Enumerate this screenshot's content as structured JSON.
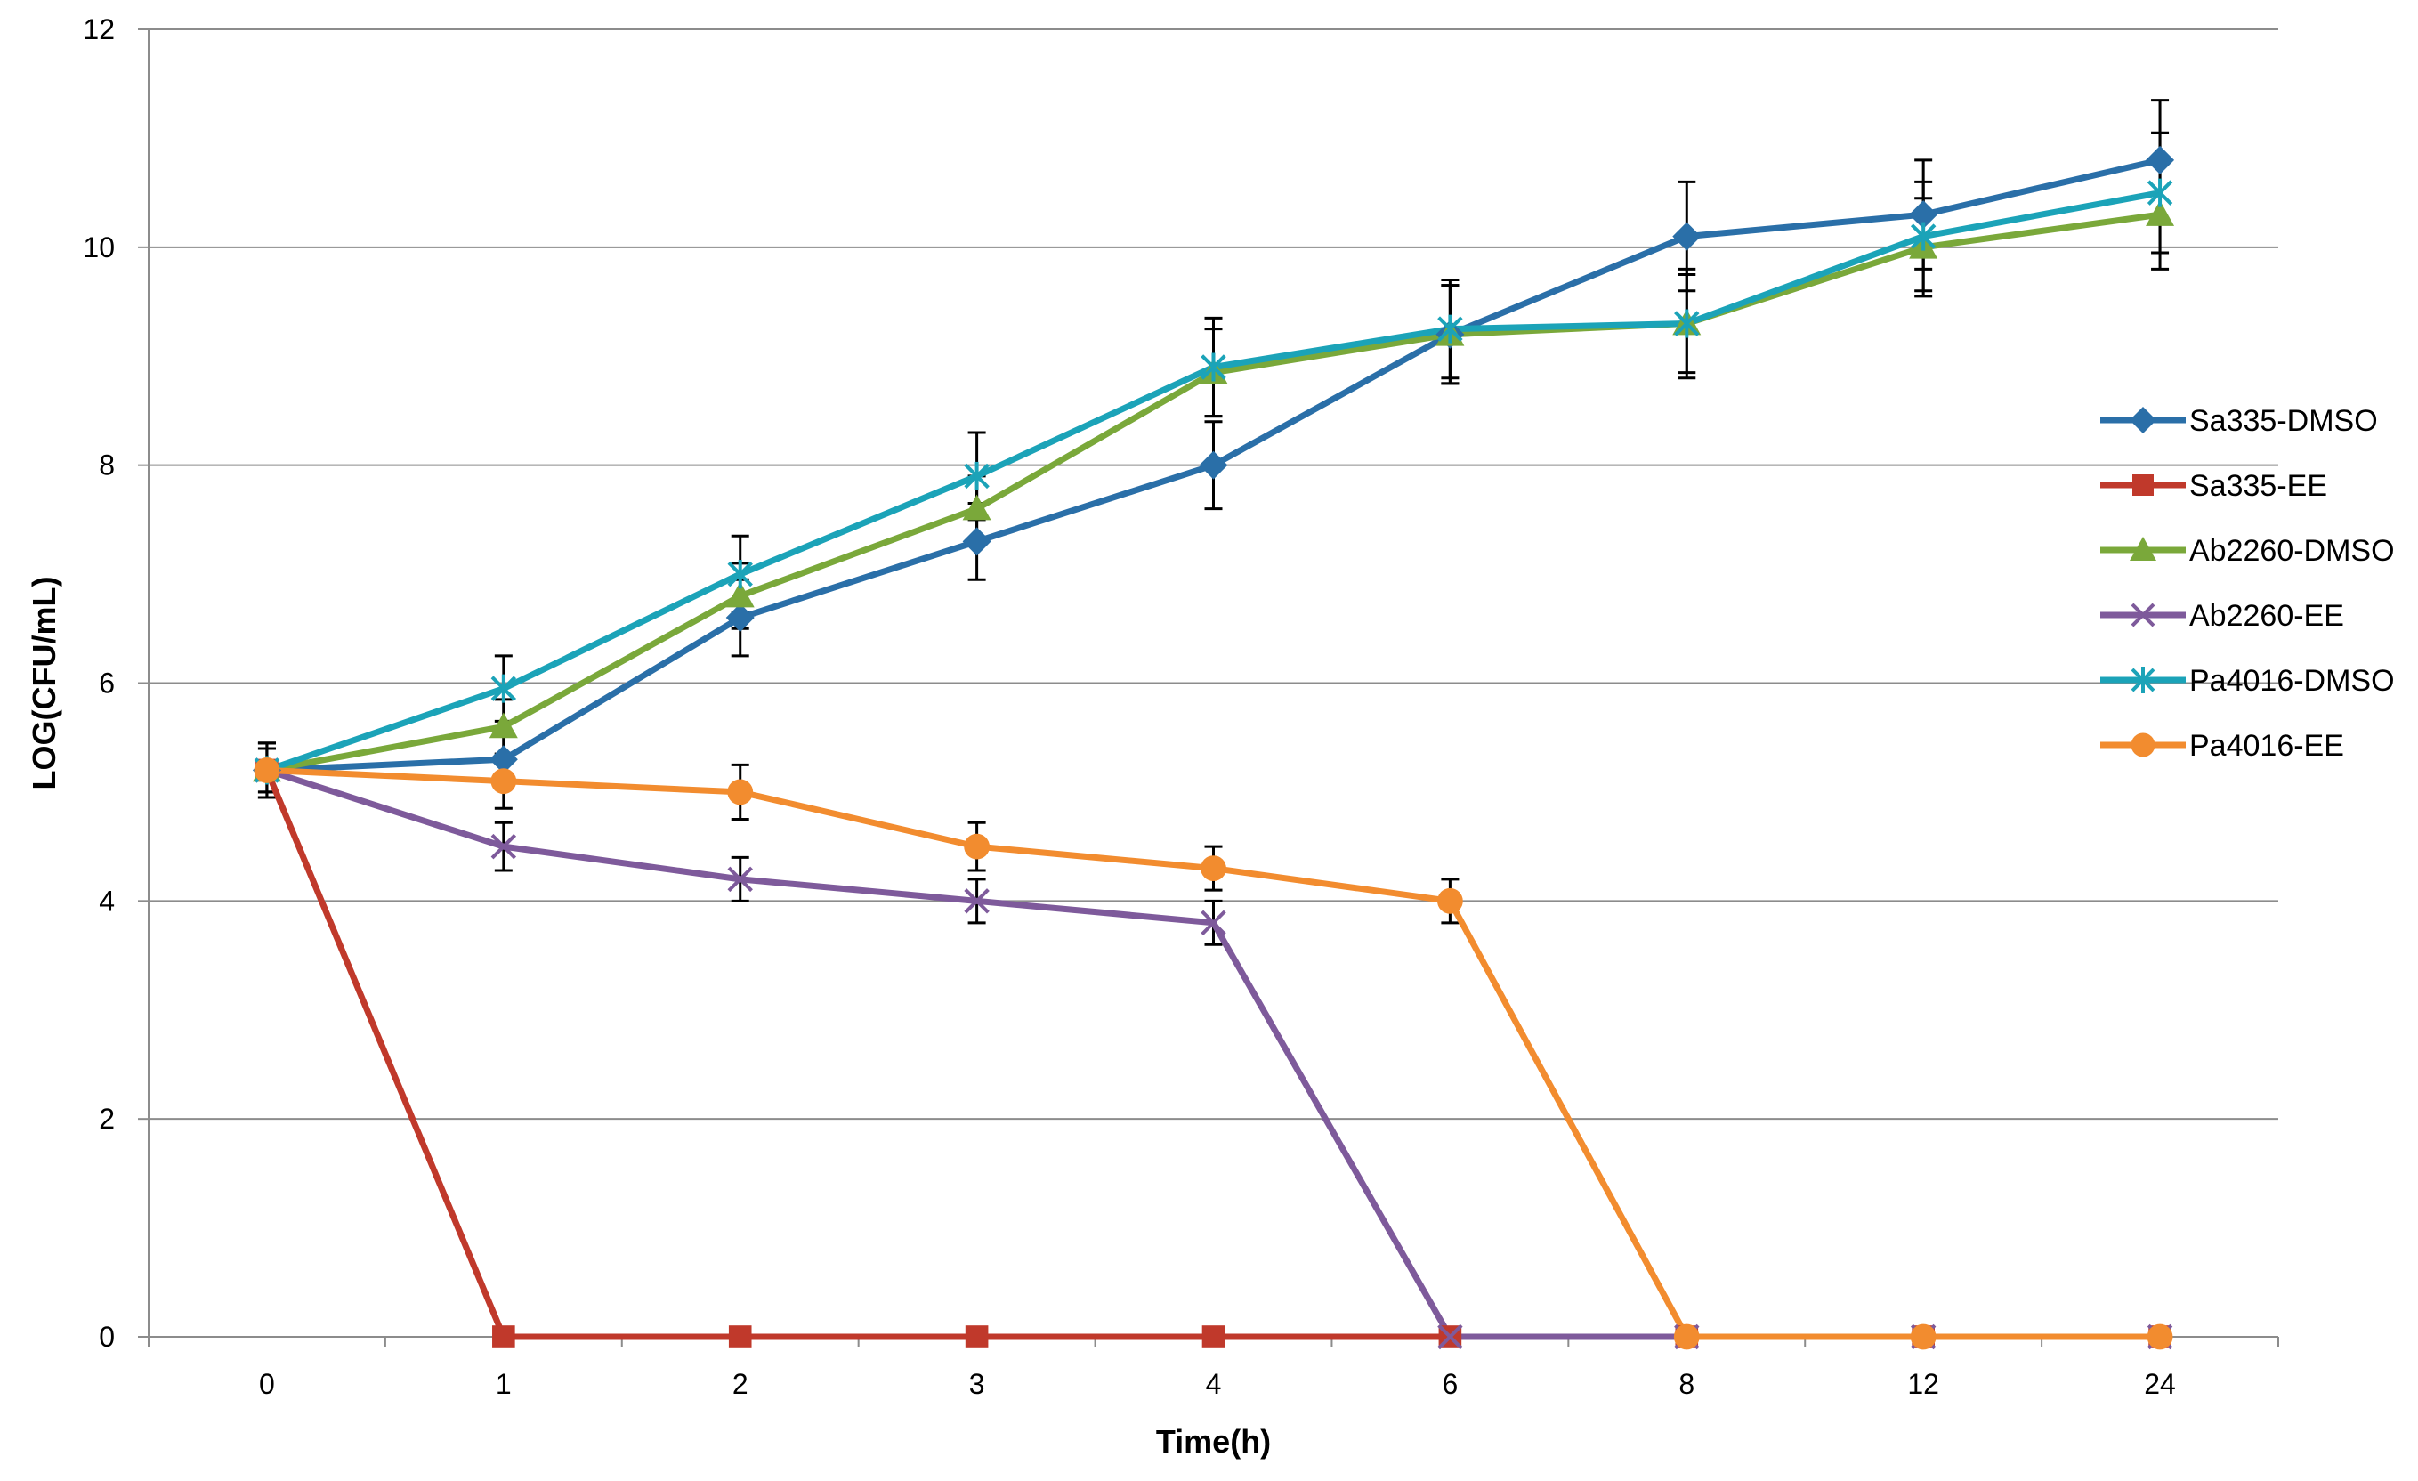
{
  "chart_data": {
    "type": "line",
    "title": "",
    "xlabel": "Time(h)",
    "ylabel": "LOG(CFU/mL)",
    "categories": [
      "0",
      "1",
      "2",
      "3",
      "4",
      "6",
      "8",
      "12",
      "24"
    ],
    "ylim": [
      0,
      12
    ],
    "y_ticks": [
      "0",
      "2",
      "4",
      "6",
      "8",
      "10",
      "12"
    ],
    "grid": "horizontal",
    "legend_position": "right",
    "series": [
      {
        "name": "Sa335-DMSO",
        "color": "#2A6FA8",
        "marker": "diamond",
        "values": [
          5.2,
          5.3,
          6.6,
          7.3,
          8.0,
          9.2,
          10.1,
          10.3,
          10.8
        ],
        "errors": [
          0.25,
          0.25,
          0.35,
          0.35,
          0.4,
          0.45,
          0.5,
          0.5,
          0.55
        ]
      },
      {
        "name": "Sa335-EE",
        "color": "#C0392B",
        "marker": "square",
        "values": [
          5.2,
          0,
          0,
          0,
          0,
          0,
          0,
          0,
          0
        ],
        "errors": [
          0,
          0,
          0,
          0,
          0,
          0,
          0,
          0,
          0
        ]
      },
      {
        "name": "Ab2260-DMSO",
        "color": "#7AA83A",
        "marker": "triangle",
        "values": [
          5.2,
          5.6,
          6.8,
          7.6,
          8.85,
          9.2,
          9.3,
          10.0,
          10.3
        ],
        "errors": [
          0.2,
          0.25,
          0.3,
          0.3,
          0.4,
          0.45,
          0.45,
          0.45,
          0.5
        ]
      },
      {
        "name": "Ab2260-EE",
        "color": "#7E5A9B",
        "marker": "x",
        "values": [
          5.2,
          4.5,
          4.2,
          4.0,
          3.8,
          0,
          0,
          0,
          0
        ],
        "errors": [
          0.2,
          0.22,
          0.2,
          0.2,
          0.2,
          0,
          0,
          0,
          0
        ]
      },
      {
        "name": "Pa4016-DMSO",
        "color": "#1BA3B8",
        "marker": "star",
        "values": [
          5.2,
          5.95,
          7.0,
          7.9,
          8.9,
          9.25,
          9.3,
          10.1,
          10.5
        ],
        "errors": [
          0.25,
          0.3,
          0.35,
          0.4,
          0.45,
          0.45,
          0.5,
          0.5,
          0.55
        ]
      },
      {
        "name": "Pa4016-EE",
        "color": "#F28C2F",
        "marker": "circle",
        "values": [
          5.2,
          5.1,
          5.0,
          4.5,
          4.3,
          4.0,
          0,
          0,
          0
        ],
        "errors": [
          0.25,
          0.25,
          0.25,
          0.22,
          0.2,
          0.2,
          0,
          0,
          0
        ]
      }
    ]
  }
}
